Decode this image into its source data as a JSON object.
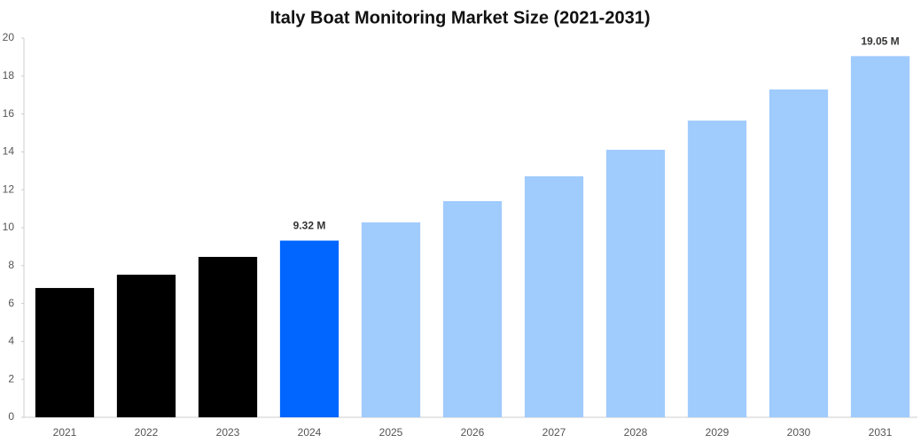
{
  "chart_data": {
    "type": "bar",
    "title": "Italy Boat Monitoring Market Size (2021-2031)",
    "categories": [
      "2021",
      "2022",
      "2023",
      "2024",
      "2025",
      "2026",
      "2027",
      "2028",
      "2029",
      "2030",
      "2031"
    ],
    "values": [
      6.82,
      7.52,
      8.46,
      9.32,
      10.28,
      11.4,
      12.71,
      14.11,
      15.65,
      17.29,
      19.05
    ],
    "value_labels": [
      null,
      null,
      null,
      "9.32 M",
      null,
      null,
      null,
      null,
      null,
      null,
      "19.05 M"
    ],
    "colors": [
      "#000000",
      "#000000",
      "#000000",
      "#0066ff",
      "#a0cbfd",
      "#a0cbfd",
      "#a0cbfd",
      "#a0cbfd",
      "#a0cbfd",
      "#a0cbfd",
      "#a0cbfd"
    ],
    "ylim": [
      0,
      20
    ],
    "yticks": [
      0,
      2,
      4,
      6,
      8,
      10,
      12,
      14,
      16,
      18,
      20
    ],
    "grid": false
  }
}
